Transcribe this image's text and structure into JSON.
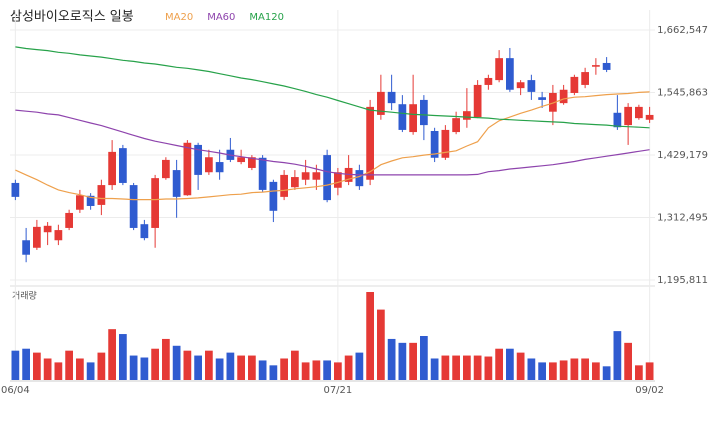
{
  "chart_data": {
    "type": "candlestick",
    "title": "삼성바이오로직스 일봉",
    "categories": [
      "06/04",
      null,
      null,
      null,
      null,
      null,
      null,
      null,
      null,
      null,
      null,
      null,
      null,
      null,
      null,
      null,
      null,
      null,
      null,
      null,
      null,
      null,
      null,
      null,
      null,
      null,
      null,
      null,
      null,
      null,
      "07/21",
      null,
      null,
      null,
      null,
      null,
      null,
      null,
      null,
      null,
      null,
      null,
      null,
      null,
      null,
      null,
      null,
      null,
      null,
      null,
      null,
      null,
      null,
      null,
      null,
      null,
      null,
      null,
      null,
      "09/02"
    ],
    "open": [
      1377000,
      1270000,
      1256000,
      1285000,
      1270000,
      1293000,
      1327000,
      1353000,
      1336000,
      1373000,
      1442000,
      1373000,
      1300000,
      1293000,
      1386000,
      1401000,
      1354000,
      1448000,
      1397000,
      1416000,
      1439000,
      1416000,
      1405000,
      1424000,
      1379000,
      1351000,
      1369000,
      1383000,
      1383000,
      1429000,
      1368000,
      1379000,
      1401000,
      1383000,
      1504000,
      1547000,
      1524000,
      1472000,
      1532000,
      1474000,
      1424000,
      1472000,
      1495000,
      1500000,
      1560000,
      1569000,
      1610000,
      1554000,
      1569000,
      1537000,
      1510000,
      1526000,
      1545000,
      1560000,
      1594000,
      1601000,
      1508000,
      1485000,
      1498000,
      1495000
    ],
    "high": [
      1383000,
      1293000,
      1308000,
      1304000,
      1299000,
      1327000,
      1364000,
      1358000,
      1383000,
      1457000,
      1448000,
      1377000,
      1308000,
      1392000,
      1425000,
      1420000,
      1457000,
      1452000,
      1439000,
      1439000,
      1461000,
      1439000,
      1429000,
      1429000,
      1383000,
      1401000,
      1401000,
      1420000,
      1411000,
      1439000,
      1405000,
      1429000,
      1411000,
      1532000,
      1579000,
      1579000,
      1541000,
      1579000,
      1541000,
      1480000,
      1485000,
      1510000,
      1554000,
      1569000,
      1579000,
      1625000,
      1629000,
      1569000,
      1579000,
      1547000,
      1560000,
      1560000,
      1579000,
      1592000,
      1610000,
      1612000,
      1541000,
      1526000,
      1523000,
      1519000
    ],
    "low": [
      1345000,
      1229000,
      1252000,
      1261000,
      1261000,
      1289000,
      1321000,
      1327000,
      1317000,
      1364000,
      1373000,
      1289000,
      1270000,
      1256000,
      1383000,
      1312000,
      1353000,
      1364000,
      1392000,
      1383000,
      1416000,
      1412000,
      1401000,
      1360000,
      1304000,
      1345000,
      1364000,
      1373000,
      1364000,
      1341000,
      1354000,
      1373000,
      1364000,
      1373000,
      1495000,
      1513000,
      1472000,
      1467000,
      1457000,
      1416000,
      1420000,
      1468000,
      1480000,
      1498000,
      1551000,
      1565000,
      1547000,
      1541000,
      1532000,
      1517000,
      1485000,
      1523000,
      1541000,
      1554000,
      1579000,
      1584000,
      1476000,
      1448000,
      1495000,
      1489000
    ],
    "close": [
      1351000,
      1243000,
      1295000,
      1297000,
      1289000,
      1321000,
      1354000,
      1334000,
      1373000,
      1435000,
      1377000,
      1293000,
      1274000,
      1386000,
      1420000,
      1351000,
      1452000,
      1392000,
      1425000,
      1397000,
      1420000,
      1425000,
      1425000,
      1364000,
      1325000,
      1392000,
      1388000,
      1397000,
      1397000,
      1345000,
      1397000,
      1405000,
      1371000,
      1519000,
      1547000,
      1526000,
      1476000,
      1524000,
      1485000,
      1424000,
      1476000,
      1498000,
      1511000,
      1560000,
      1573000,
      1610000,
      1551000,
      1565000,
      1547000,
      1532000,
      1545000,
      1551000,
      1575000,
      1584000,
      1597000,
      1588000,
      1481000,
      1519000,
      1519000,
      1504000
    ],
    "up_color": "#e53935",
    "down_color": "#2f5bd0",
    "series": [
      {
        "name": "MA20",
        "color": "#eea04c",
        "values": [
          1401000,
          1392000,
          1383000,
          1373000,
          1364000,
          1359000,
          1355000,
          1350000,
          1348000,
          1348000,
          1347000,
          1346000,
          1346000,
          1346000,
          1347000,
          1347000,
          1348000,
          1349000,
          1351000,
          1353000,
          1355000,
          1356000,
          1359000,
          1360000,
          1362000,
          1363000,
          1366000,
          1368000,
          1370000,
          1373000,
          1378000,
          1384000,
          1389000,
          1398000,
          1411000,
          1418000,
          1424000,
          1426000,
          1429000,
          1431000,
          1434000,
          1437000,
          1446000,
          1454000,
          1480000,
          1493000,
          1500000,
          1507000,
          1513000,
          1520000,
          1526000,
          1534000,
          1537000,
          1538000,
          1540000,
          1542000,
          1543000,
          1544000,
          1546000,
          1547000
        ]
      },
      {
        "name": "MA60",
        "color": "#8e44ad",
        "values": [
          1513000,
          1511000,
          1509000,
          1506000,
          1504000,
          1499000,
          1494000,
          1489000,
          1484000,
          1478000,
          1472000,
          1466000,
          1460000,
          1455000,
          1451000,
          1447000,
          1443000,
          1439000,
          1436000,
          1433000,
          1429000,
          1426000,
          1423000,
          1420000,
          1417000,
          1415000,
          1412000,
          1408000,
          1403000,
          1398000,
          1395000,
          1393000,
          1392000,
          1392000,
          1392000,
          1392000,
          1392000,
          1392000,
          1392000,
          1392000,
          1392000,
          1392000,
          1392000,
          1393000,
          1398000,
          1400000,
          1403000,
          1405000,
          1407000,
          1409000,
          1411000,
          1414000,
          1417000,
          1421000,
          1424000,
          1427000,
          1430000,
          1433000,
          1436000,
          1439000
        ]
      },
      {
        "name": "MA120",
        "color": "#27a24a",
        "values": [
          1631000,
          1628000,
          1626000,
          1624000,
          1621000,
          1619000,
          1616000,
          1614000,
          1612000,
          1609000,
          1606000,
          1604000,
          1601000,
          1599000,
          1596000,
          1593000,
          1591000,
          1588000,
          1585000,
          1581000,
          1577000,
          1573000,
          1570000,
          1566000,
          1562000,
          1558000,
          1553000,
          1548000,
          1542000,
          1537000,
          1531000,
          1525000,
          1519000,
          1513000,
          1511000,
          1509000,
          1507000,
          1505000,
          1504000,
          1503000,
          1502000,
          1501000,
          1500000,
          1499000,
          1498000,
          1496000,
          1495000,
          1494000,
          1493000,
          1492000,
          1491000,
          1490000,
          1488000,
          1487000,
          1486000,
          1485000,
          1483000,
          1482000,
          1481000,
          1480000
        ]
      }
    ],
    "volume": {
      "label": "거래량",
      "values": [
        30,
        32,
        28,
        22,
        18,
        30,
        22,
        18,
        28,
        52,
        47,
        25,
        23,
        32,
        42,
        35,
        30,
        25,
        30,
        22,
        28,
        25,
        25,
        20,
        15,
        22,
        30,
        18,
        20,
        20,
        18,
        25,
        28,
        90,
        72,
        42,
        38,
        38,
        45,
        22,
        25,
        25,
        25,
        25,
        24,
        32,
        32,
        28,
        22,
        18,
        18,
        20,
        22,
        22,
        18,
        14,
        50,
        38,
        15,
        18
      ]
    },
    "ylim": [
      1186476,
      1699886
    ],
    "yticks": [
      {
        "value": 1195811,
        "label": "1,195,811"
      },
      {
        "value": 1312495,
        "label": "1,312,495"
      },
      {
        "value": 1429179,
        "label": "1,429,179"
      },
      {
        "value": 1545863,
        "label": "1,545,863"
      },
      {
        "value": 1662547,
        "label": "1,662,547"
      }
    ],
    "grid": true
  }
}
